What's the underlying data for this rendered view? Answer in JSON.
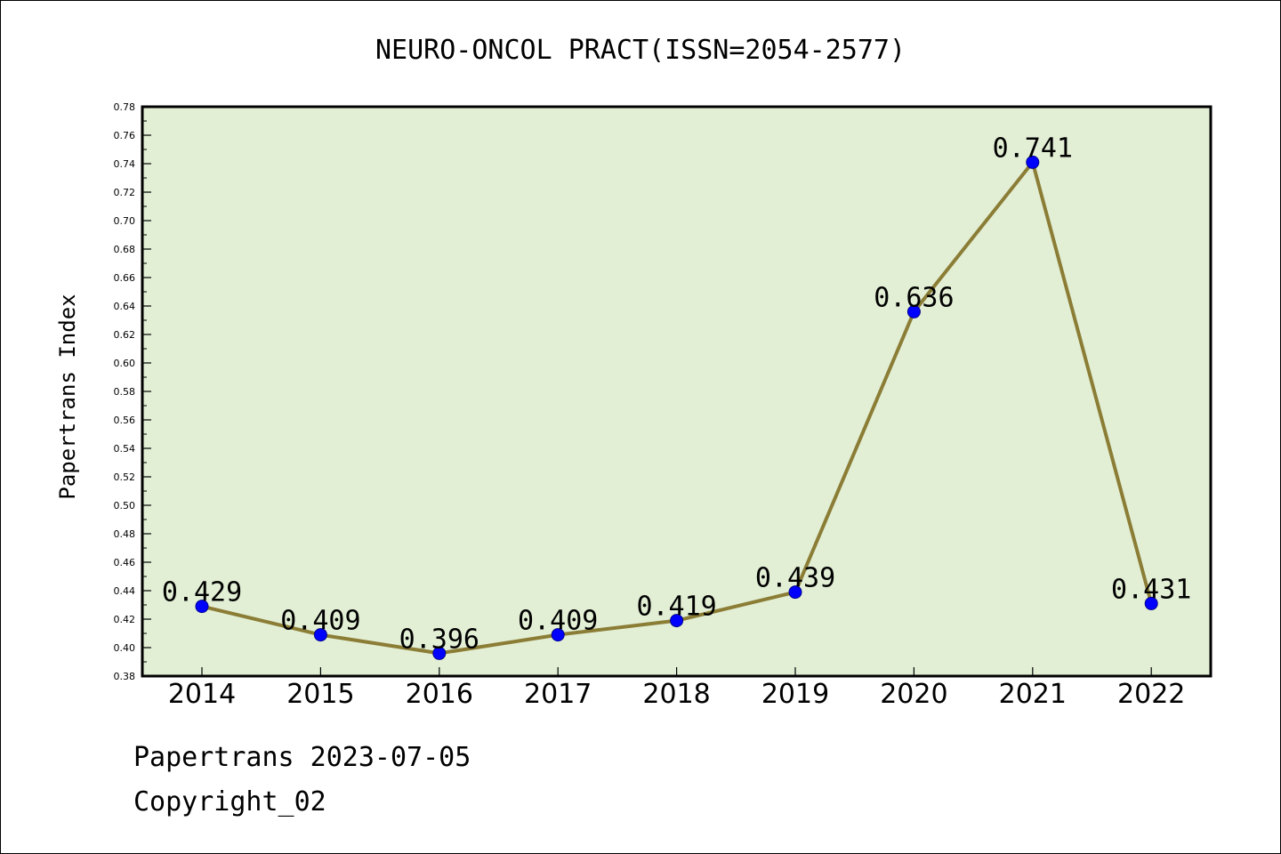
{
  "chart_data": {
    "type": "line",
    "title": "NEURO-ONCOL PRACT(ISSN=2054-2577)",
    "xlabel": "",
    "ylabel": "Papertrans Index",
    "categories": [
      "2014",
      "2015",
      "2016",
      "2017",
      "2018",
      "2019",
      "2020",
      "2021",
      "2022"
    ],
    "values": [
      0.429,
      0.409,
      0.396,
      0.409,
      0.419,
      0.439,
      0.636,
      0.741,
      0.431
    ],
    "data_labels": [
      "0.429",
      "0.409",
      "0.396",
      "0.409",
      "0.419",
      "0.439",
      "0.636",
      "0.741",
      "0.431"
    ],
    "ylim": [
      0.38,
      0.78
    ],
    "yticks": [
      "0.38",
      "0.40",
      "0.42",
      "0.44",
      "0.46",
      "0.48",
      "0.50",
      "0.52",
      "0.54",
      "0.56",
      "0.58",
      "0.60",
      "0.62",
      "0.64",
      "0.66",
      "0.68",
      "0.70",
      "0.72",
      "0.74",
      "0.76",
      "0.78"
    ],
    "grid": false,
    "colors": {
      "plot_background": "#e2efd5",
      "line": "#8b7d35",
      "marker": "#0000ff"
    }
  },
  "footer": {
    "line1": "Papertrans 2023-07-05",
    "line2": "Copyright_02"
  }
}
